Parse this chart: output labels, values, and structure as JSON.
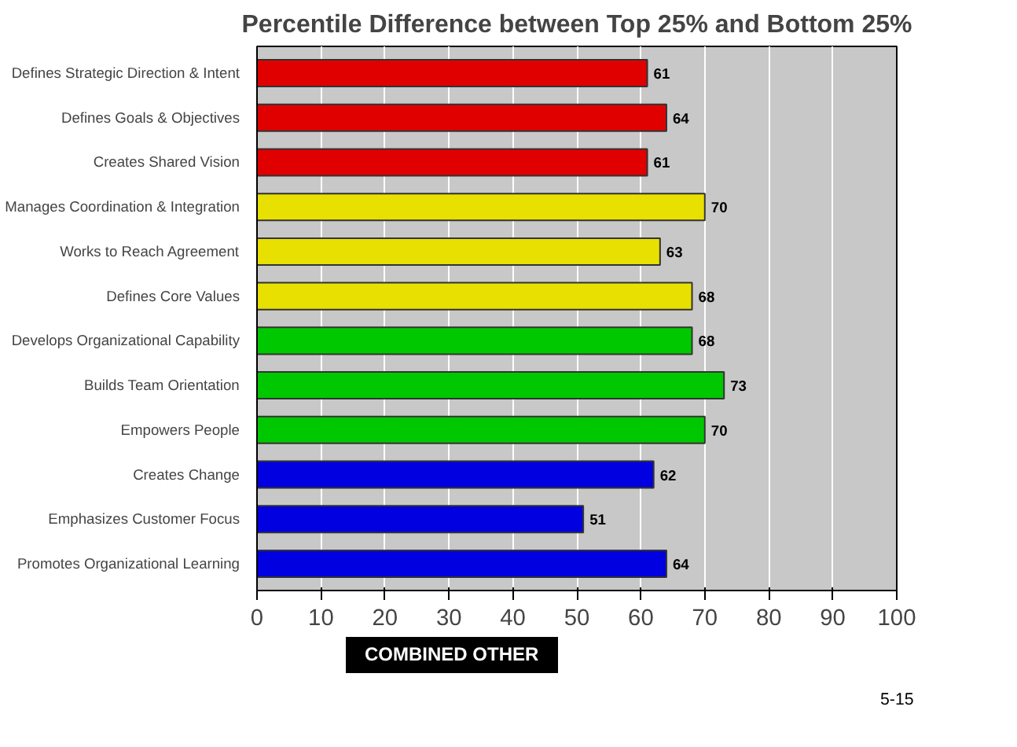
{
  "chart_data": {
    "type": "bar",
    "orientation": "horizontal",
    "title": "Percentile Difference between Top 25% and Bottom 25%",
    "categories": [
      "Defines Strategic Direction & Intent",
      "Defines Goals & Objectives",
      "Creates Shared Vision",
      "Manages Coordination & Integration",
      "Works to Reach Agreement",
      "Defines Core Values",
      "Develops Organizational Capability",
      "Builds Team Orientation",
      "Empowers People",
      "Creates Change",
      "Emphasizes Customer Focus",
      "Promotes Organizational Learning"
    ],
    "values": [
      61,
      64,
      61,
      70,
      63,
      68,
      68,
      73,
      70,
      62,
      51,
      64
    ],
    "colors": [
      "#e00000",
      "#e00000",
      "#e00000",
      "#e8e000",
      "#e8e000",
      "#e8e000",
      "#00c800",
      "#00c800",
      "#00c800",
      "#0000e0",
      "#0000e0",
      "#0000e0"
    ],
    "xlim": [
      0,
      100
    ],
    "xticks": [
      0,
      10,
      20,
      30,
      40,
      50,
      60,
      70,
      80,
      90,
      100
    ],
    "grid": "x",
    "data_labels": true,
    "annotations": [
      "COMBINED OTHER",
      "5-15"
    ]
  }
}
